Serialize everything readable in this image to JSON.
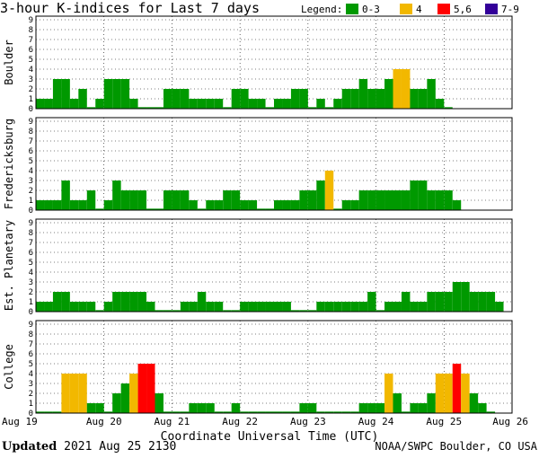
{
  "title": "3-hour K-indices for Last 7 days",
  "legend": {
    "label": "Legend:",
    "entries": [
      {
        "label": "0-3",
        "color": "#009900"
      },
      {
        "label": "4",
        "color": "#f2b800"
      },
      {
        "label": "5,6",
        "color": "#ff0000"
      },
      {
        "label": "7-9",
        "color": "#330099"
      }
    ]
  },
  "footer": {
    "updated_label": "Updated",
    "updated_value": " 2021 Aug 25 2130",
    "source": "NOAA/SWPC Boulder, CO USA"
  },
  "chart_data": {
    "type": "bar",
    "title": "3-hour K-indices for Last 7 days",
    "xlabel": "Coordinate Universal Time (UTC)",
    "x_ticks": [
      "Aug 19",
      "Aug 20",
      "Aug 21",
      "Aug 22",
      "Aug 23",
      "Aug 24",
      "Aug 25",
      "Aug 26"
    ],
    "y_ticks": [
      "0",
      "1",
      "2",
      "3",
      "4",
      "5",
      "6",
      "7",
      "8",
      "9"
    ],
    "ylim": [
      0,
      9
    ],
    "grid": true,
    "legend_position": "top-right",
    "series": [
      {
        "name": "Boulder",
        "values": [
          1,
          1,
          3,
          3,
          1,
          2,
          0,
          1,
          3,
          3,
          3,
          1,
          0,
          0,
          0,
          2,
          2,
          2,
          1,
          1,
          1,
          1,
          0,
          2,
          2,
          1,
          1,
          0,
          1,
          1,
          2,
          2,
          0,
          1,
          0,
          1,
          2,
          2,
          3,
          2,
          2,
          3,
          4,
          4,
          2,
          2,
          3,
          1,
          0
        ]
      },
      {
        "name": "Fredericksburg",
        "values": [
          1,
          1,
          1,
          3,
          1,
          1,
          2,
          0,
          1,
          3,
          2,
          2,
          2,
          0,
          0,
          2,
          2,
          2,
          1,
          0,
          1,
          1,
          2,
          2,
          1,
          1,
          0,
          0,
          1,
          1,
          1,
          2,
          2,
          3,
          4,
          0,
          1,
          1,
          2,
          2,
          2,
          2,
          2,
          2,
          3,
          3,
          2,
          2,
          2,
          1
        ]
      },
      {
        "name": "Est. Planetary",
        "values": [
          1,
          1,
          2,
          2,
          1,
          1,
          1,
          0,
          1,
          2,
          2,
          2,
          2,
          1,
          0,
          0,
          0,
          1,
          1,
          2,
          1,
          1,
          0,
          0,
          1,
          1,
          1,
          1,
          1,
          1,
          0,
          0,
          0,
          1,
          1,
          1,
          1,
          1,
          1,
          2,
          0,
          1,
          1,
          2,
          1,
          1,
          2,
          2,
          2,
          3,
          3,
          2,
          2,
          2,
          1
        ]
      },
      {
        "name": "College",
        "values": [
          0,
          0,
          0,
          4,
          4,
          4,
          1,
          1,
          0,
          2,
          3,
          4,
          5,
          5,
          2,
          0,
          0,
          0,
          1,
          1,
          1,
          0,
          0,
          1,
          0,
          0,
          0,
          0,
          0,
          0,
          0,
          1,
          1,
          0,
          0,
          0,
          0,
          0,
          1,
          1,
          1,
          4,
          2,
          0,
          1,
          1,
          2,
          4,
          4,
          5,
          4,
          2,
          1,
          0
        ]
      }
    ]
  }
}
